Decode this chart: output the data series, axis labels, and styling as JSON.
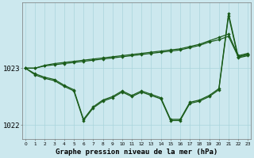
{
  "title": "Graphe pression niveau de la mer (hPa)",
  "background_color": "#cce8ee",
  "grid_color": "#aad4dc",
  "line_color": "#1a5c1a",
  "hours": [
    0,
    1,
    2,
    3,
    4,
    5,
    6,
    7,
    8,
    9,
    10,
    11,
    12,
    13,
    14,
    15,
    16,
    17,
    18,
    19,
    20,
    21,
    22,
    23
  ],
  "line_upper1": [
    1023.0,
    1023.0,
    1023.05,
    1023.08,
    1023.1,
    1023.12,
    1023.14,
    1023.16,
    1023.18,
    1023.2,
    1023.22,
    1023.24,
    1023.26,
    1023.28,
    1023.3,
    1023.32,
    1023.34,
    1023.38,
    1023.42,
    1023.48,
    1023.54,
    1023.6,
    1023.22,
    1023.26
  ],
  "line_upper2": [
    1023.0,
    1023.0,
    1023.04,
    1023.06,
    1023.08,
    1023.1,
    1023.12,
    1023.14,
    1023.16,
    1023.18,
    1023.2,
    1023.22,
    1023.24,
    1023.26,
    1023.28,
    1023.3,
    1023.32,
    1023.36,
    1023.4,
    1023.46,
    1023.5,
    1023.56,
    1023.2,
    1023.24
  ],
  "line_low1": [
    1023.0,
    1022.88,
    1022.82,
    1022.78,
    1022.68,
    1022.6,
    1022.08,
    1022.3,
    1022.42,
    1022.48,
    1022.58,
    1022.5,
    1022.58,
    1022.52,
    1022.46,
    1022.08,
    1022.08,
    1022.38,
    1022.42,
    1022.5,
    1022.62,
    1023.92,
    1023.18,
    1023.22
  ],
  "line_low2": [
    1023.0,
    1022.9,
    1022.84,
    1022.8,
    1022.7,
    1022.62,
    1022.1,
    1022.32,
    1022.44,
    1022.5,
    1022.6,
    1022.52,
    1022.6,
    1022.54,
    1022.48,
    1022.1,
    1022.1,
    1022.4,
    1022.44,
    1022.52,
    1022.64,
    1023.96,
    1023.2,
    1023.24
  ],
  "ylim": [
    1021.75,
    1024.15
  ],
  "yticks": [
    1022.0,
    1023.0
  ],
  "xlim": [
    -0.3,
    23.3
  ]
}
